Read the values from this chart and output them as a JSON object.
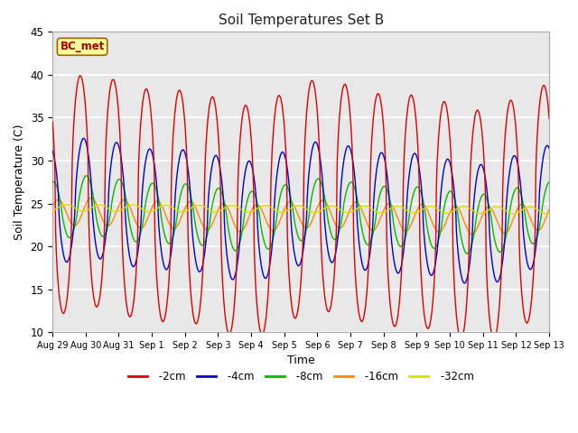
{
  "title": "Soil Temperatures Set B",
  "xlabel": "Time",
  "ylabel": "Soil Temperature (C)",
  "ylim": [
    10,
    45
  ],
  "annotation_text": "BC_met",
  "series_colors": {
    "-2cm": "#dd0000",
    "-4cm": "#0000cc",
    "-8cm": "#00bb00",
    "-16cm": "#ff8800",
    "-32cm": "#dddd00"
  },
  "series_labels": [
    "-2cm",
    "-4cm",
    "-8cm",
    "-16cm",
    "-32cm"
  ],
  "tick_labels": [
    "Aug 29",
    "Aug 30",
    "Aug 31",
    "Sep 1",
    "Sep 2",
    "Sep 3",
    "Sep 4",
    "Sep 5",
    "Sep 6",
    "Sep 7",
    "Sep 8",
    "Sep 9",
    "Sep 10",
    "Sep 11",
    "Sep 12",
    "Sep 13"
  ],
  "yticks": [
    10,
    15,
    20,
    25,
    30,
    35,
    40,
    45
  ],
  "linewidth": 1.0,
  "fig_bg": "#ffffff",
  "ax_bg": "#e8e8e8",
  "grid_color": "#ffffff"
}
